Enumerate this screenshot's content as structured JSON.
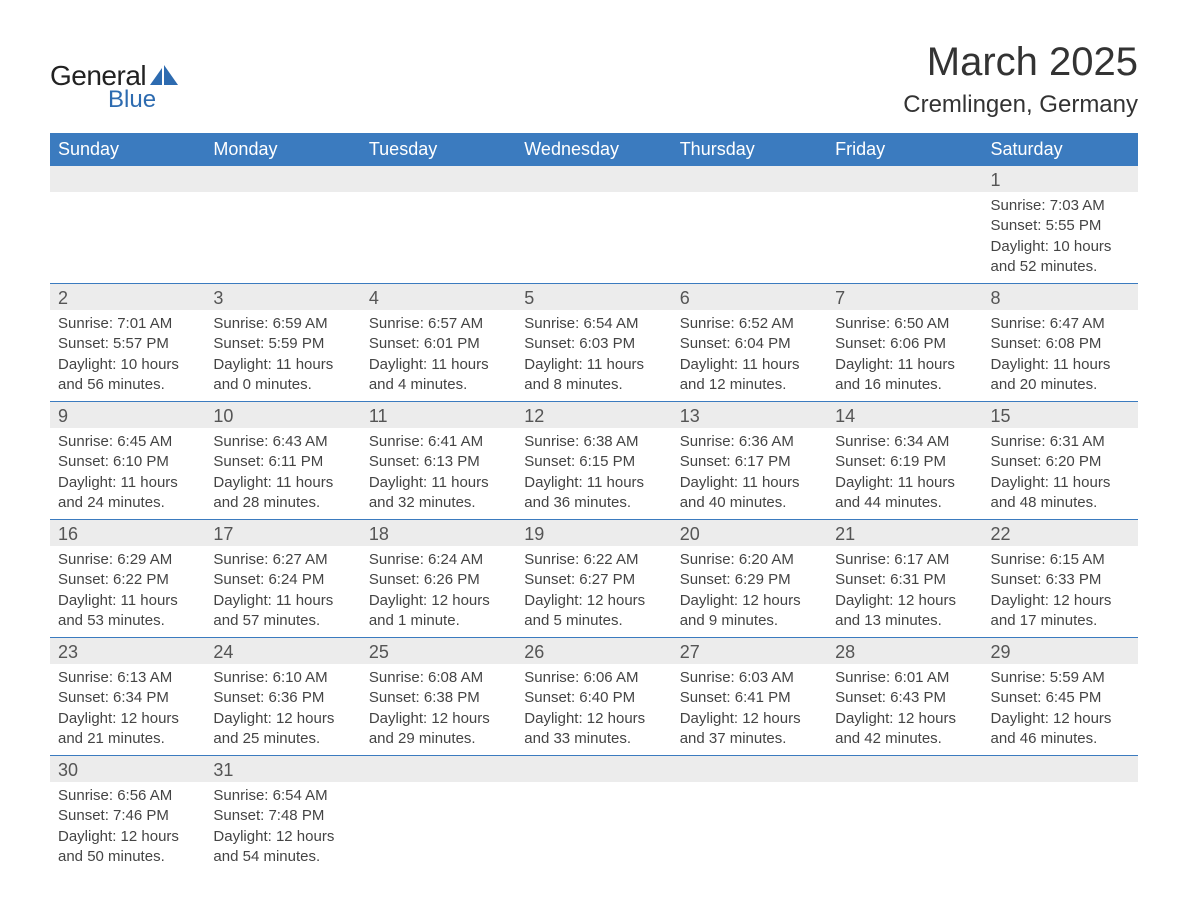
{
  "logo": {
    "text_general": "General",
    "text_blue": "Blue",
    "icon_color": "#2d6bb0"
  },
  "title": "March 2025",
  "subtitle": "Cremlingen, Germany",
  "colors": {
    "header_bg": "#3b7bbf",
    "header_text": "#ffffff",
    "daynum_bg": "#ececec",
    "row_border": "#3b7bbf",
    "body_text": "#444444",
    "background": "#ffffff"
  },
  "typography": {
    "title_fontsize": 40,
    "subtitle_fontsize": 24,
    "header_fontsize": 18,
    "daynum_fontsize": 18,
    "cell_fontsize": 15
  },
  "day_headers": [
    "Sunday",
    "Monday",
    "Tuesday",
    "Wednesday",
    "Thursday",
    "Friday",
    "Saturday"
  ],
  "weeks": [
    [
      null,
      null,
      null,
      null,
      null,
      null,
      {
        "n": "1",
        "sunrise": "Sunrise: 7:03 AM",
        "sunset": "Sunset: 5:55 PM",
        "daylight": "Daylight: 10 hours and 52 minutes."
      }
    ],
    [
      {
        "n": "2",
        "sunrise": "Sunrise: 7:01 AM",
        "sunset": "Sunset: 5:57 PM",
        "daylight": "Daylight: 10 hours and 56 minutes."
      },
      {
        "n": "3",
        "sunrise": "Sunrise: 6:59 AM",
        "sunset": "Sunset: 5:59 PM",
        "daylight": "Daylight: 11 hours and 0 minutes."
      },
      {
        "n": "4",
        "sunrise": "Sunrise: 6:57 AM",
        "sunset": "Sunset: 6:01 PM",
        "daylight": "Daylight: 11 hours and 4 minutes."
      },
      {
        "n": "5",
        "sunrise": "Sunrise: 6:54 AM",
        "sunset": "Sunset: 6:03 PM",
        "daylight": "Daylight: 11 hours and 8 minutes."
      },
      {
        "n": "6",
        "sunrise": "Sunrise: 6:52 AM",
        "sunset": "Sunset: 6:04 PM",
        "daylight": "Daylight: 11 hours and 12 minutes."
      },
      {
        "n": "7",
        "sunrise": "Sunrise: 6:50 AM",
        "sunset": "Sunset: 6:06 PM",
        "daylight": "Daylight: 11 hours and 16 minutes."
      },
      {
        "n": "8",
        "sunrise": "Sunrise: 6:47 AM",
        "sunset": "Sunset: 6:08 PM",
        "daylight": "Daylight: 11 hours and 20 minutes."
      }
    ],
    [
      {
        "n": "9",
        "sunrise": "Sunrise: 6:45 AM",
        "sunset": "Sunset: 6:10 PM",
        "daylight": "Daylight: 11 hours and 24 minutes."
      },
      {
        "n": "10",
        "sunrise": "Sunrise: 6:43 AM",
        "sunset": "Sunset: 6:11 PM",
        "daylight": "Daylight: 11 hours and 28 minutes."
      },
      {
        "n": "11",
        "sunrise": "Sunrise: 6:41 AM",
        "sunset": "Sunset: 6:13 PM",
        "daylight": "Daylight: 11 hours and 32 minutes."
      },
      {
        "n": "12",
        "sunrise": "Sunrise: 6:38 AM",
        "sunset": "Sunset: 6:15 PM",
        "daylight": "Daylight: 11 hours and 36 minutes."
      },
      {
        "n": "13",
        "sunrise": "Sunrise: 6:36 AM",
        "sunset": "Sunset: 6:17 PM",
        "daylight": "Daylight: 11 hours and 40 minutes."
      },
      {
        "n": "14",
        "sunrise": "Sunrise: 6:34 AM",
        "sunset": "Sunset: 6:19 PM",
        "daylight": "Daylight: 11 hours and 44 minutes."
      },
      {
        "n": "15",
        "sunrise": "Sunrise: 6:31 AM",
        "sunset": "Sunset: 6:20 PM",
        "daylight": "Daylight: 11 hours and 48 minutes."
      }
    ],
    [
      {
        "n": "16",
        "sunrise": "Sunrise: 6:29 AM",
        "sunset": "Sunset: 6:22 PM",
        "daylight": "Daylight: 11 hours and 53 minutes."
      },
      {
        "n": "17",
        "sunrise": "Sunrise: 6:27 AM",
        "sunset": "Sunset: 6:24 PM",
        "daylight": "Daylight: 11 hours and 57 minutes."
      },
      {
        "n": "18",
        "sunrise": "Sunrise: 6:24 AM",
        "sunset": "Sunset: 6:26 PM",
        "daylight": "Daylight: 12 hours and 1 minute."
      },
      {
        "n": "19",
        "sunrise": "Sunrise: 6:22 AM",
        "sunset": "Sunset: 6:27 PM",
        "daylight": "Daylight: 12 hours and 5 minutes."
      },
      {
        "n": "20",
        "sunrise": "Sunrise: 6:20 AM",
        "sunset": "Sunset: 6:29 PM",
        "daylight": "Daylight: 12 hours and 9 minutes."
      },
      {
        "n": "21",
        "sunrise": "Sunrise: 6:17 AM",
        "sunset": "Sunset: 6:31 PM",
        "daylight": "Daylight: 12 hours and 13 minutes."
      },
      {
        "n": "22",
        "sunrise": "Sunrise: 6:15 AM",
        "sunset": "Sunset: 6:33 PM",
        "daylight": "Daylight: 12 hours and 17 minutes."
      }
    ],
    [
      {
        "n": "23",
        "sunrise": "Sunrise: 6:13 AM",
        "sunset": "Sunset: 6:34 PM",
        "daylight": "Daylight: 12 hours and 21 minutes."
      },
      {
        "n": "24",
        "sunrise": "Sunrise: 6:10 AM",
        "sunset": "Sunset: 6:36 PM",
        "daylight": "Daylight: 12 hours and 25 minutes."
      },
      {
        "n": "25",
        "sunrise": "Sunrise: 6:08 AM",
        "sunset": "Sunset: 6:38 PM",
        "daylight": "Daylight: 12 hours and 29 minutes."
      },
      {
        "n": "26",
        "sunrise": "Sunrise: 6:06 AM",
        "sunset": "Sunset: 6:40 PM",
        "daylight": "Daylight: 12 hours and 33 minutes."
      },
      {
        "n": "27",
        "sunrise": "Sunrise: 6:03 AM",
        "sunset": "Sunset: 6:41 PM",
        "daylight": "Daylight: 12 hours and 37 minutes."
      },
      {
        "n": "28",
        "sunrise": "Sunrise: 6:01 AM",
        "sunset": "Sunset: 6:43 PM",
        "daylight": "Daylight: 12 hours and 42 minutes."
      },
      {
        "n": "29",
        "sunrise": "Sunrise: 5:59 AM",
        "sunset": "Sunset: 6:45 PM",
        "daylight": "Daylight: 12 hours and 46 minutes."
      }
    ],
    [
      {
        "n": "30",
        "sunrise": "Sunrise: 6:56 AM",
        "sunset": "Sunset: 7:46 PM",
        "daylight": "Daylight: 12 hours and 50 minutes."
      },
      {
        "n": "31",
        "sunrise": "Sunrise: 6:54 AM",
        "sunset": "Sunset: 7:48 PM",
        "daylight": "Daylight: 12 hours and 54 minutes."
      },
      null,
      null,
      null,
      null,
      null
    ]
  ]
}
